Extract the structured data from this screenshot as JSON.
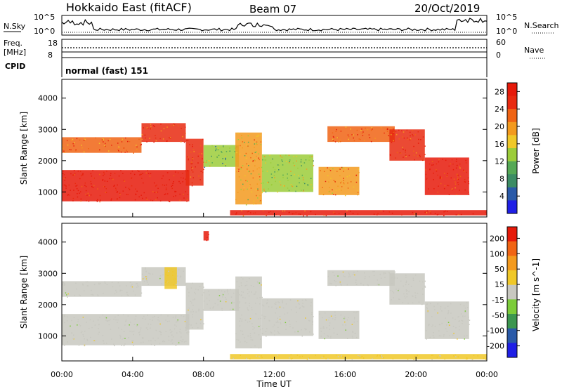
{
  "header": {
    "title": "Hokkaido East (fitACF)",
    "beam": "Beam 07",
    "date": "20/Oct/2019"
  },
  "noise_panel": {
    "left_label": "N.Sky",
    "right_label": "N.Search",
    "left_ticks": [
      "10^5",
      "10^0"
    ],
    "right_ticks": [
      "10^5",
      "10^0"
    ]
  },
  "freq_panel": {
    "left_label_1": "Freq.",
    "left_label_2": "[MHz]",
    "left_ticks": [
      "18",
      "8"
    ],
    "right_label": "Nave",
    "right_ticks": [
      "60",
      "0"
    ]
  },
  "cpid_panel": {
    "label": "CPID",
    "value": "normal (fast) 151"
  },
  "x_axis": {
    "label": "Time UT",
    "ticks": [
      "00:00",
      "04:00",
      "08:00",
      "12:00",
      "16:00",
      "20:00",
      "00:00"
    ]
  },
  "colors": {
    "power_scale": [
      "#1f1fe6",
      "#2a5aa8",
      "#3c8c64",
      "#55a855",
      "#9ccc3a",
      "#f0c828",
      "#f39a1e",
      "#f06414",
      "#e82a10",
      "#e61a0a"
    ],
    "velocity_scale": [
      "#e61a0a",
      "#f06414",
      "#f39a1e",
      "#f0c828",
      "#c8c8c0",
      "#7ccc3a",
      "#3c9650",
      "#2a5aa8",
      "#1f1fe6"
    ]
  },
  "chart_data": [
    {
      "type": "heatmap",
      "title": "Power",
      "xlabel": "Time UT",
      "ylabel": "Slant Range [km]",
      "x_ticks": [
        "00:00",
        "04:00",
        "08:00",
        "12:00",
        "16:00",
        "20:00",
        "00:00"
      ],
      "y_ticks": [
        "1000",
        "2000",
        "3000",
        "4000"
      ],
      "xlim_hours": [
        0,
        24
      ],
      "ylim_km": [
        200,
        4600
      ],
      "colorbar": {
        "label": "Power [dB]",
        "ticks": [
          "4",
          "8",
          "12",
          "16",
          "20",
          "24",
          "28"
        ],
        "range": [
          0,
          30
        ]
      },
      "regions": [
        {
          "t0": 0.0,
          "t1": 7.2,
          "r0": 700,
          "r1": 1700,
          "value": 29
        },
        {
          "t0": 0.0,
          "t1": 4.5,
          "r0": 2250,
          "r1": 2750,
          "value": 22
        },
        {
          "t0": 4.5,
          "t1": 7.0,
          "r0": 2600,
          "r1": 3200,
          "value": 25
        },
        {
          "t0": 7.0,
          "t1": 8.0,
          "r0": 1200,
          "r1": 2700,
          "value": 26
        },
        {
          "t0": 8.0,
          "t1": 10.0,
          "r0": 1800,
          "r1": 2500,
          "value": 12
        },
        {
          "t0": 9.8,
          "t1": 11.3,
          "r0": 600,
          "r1": 2900,
          "value": 18
        },
        {
          "t0": 11.3,
          "t1": 14.2,
          "r0": 1000,
          "r1": 2200,
          "value": 14
        },
        {
          "t0": 14.5,
          "t1": 16.8,
          "r0": 900,
          "r1": 1800,
          "value": 20
        },
        {
          "t0": 15.0,
          "t1": 18.8,
          "r0": 2600,
          "r1": 3100,
          "value": 22
        },
        {
          "t0": 18.5,
          "t1": 20.5,
          "r0": 2000,
          "r1": 3000,
          "value": 26
        },
        {
          "t0": 20.5,
          "t1": 23.0,
          "r0": 900,
          "r1": 2100,
          "value": 27
        },
        {
          "t0": 9.5,
          "t1": 24.0,
          "r0": 250,
          "r1": 420,
          "value": 27
        }
      ]
    },
    {
      "type": "heatmap",
      "title": "Velocity",
      "xlabel": "Time UT",
      "ylabel": "Slant Range [km]",
      "x_ticks": [
        "00:00",
        "04:00",
        "08:00",
        "12:00",
        "16:00",
        "20:00",
        "00:00"
      ],
      "y_ticks": [
        "1000",
        "2000",
        "3000",
        "4000"
      ],
      "xlim_hours": [
        0,
        24
      ],
      "ylim_km": [
        200,
        4600
      ],
      "colorbar": {
        "label": "Velocity [m s^-1]",
        "ticks": [
          "200",
          "100",
          "50",
          "15",
          "-15",
          "-50",
          "-100",
          "-200"
        ],
        "range": [
          -250,
          250
        ]
      },
      "regions": [
        {
          "t0": 0.0,
          "t1": 7.2,
          "r0": 700,
          "r1": 1700,
          "value": 0
        },
        {
          "t0": 0.0,
          "t1": 4.5,
          "r0": 2250,
          "r1": 2750,
          "value": 0
        },
        {
          "t0": 4.5,
          "t1": 7.0,
          "r0": 2600,
          "r1": 3200,
          "value": 0
        },
        {
          "t0": 5.8,
          "t1": 6.5,
          "r0": 2500,
          "r1": 3200,
          "value": 40
        },
        {
          "t0": 7.0,
          "t1": 8.0,
          "r0": 1200,
          "r1": 2700,
          "value": 0
        },
        {
          "t0": 8.0,
          "t1": 10.0,
          "r0": 1800,
          "r1": 2500,
          "value": 0
        },
        {
          "t0": 9.8,
          "t1": 11.3,
          "r0": 600,
          "r1": 2900,
          "value": 0
        },
        {
          "t0": 11.3,
          "t1": 14.2,
          "r0": 1000,
          "r1": 2200,
          "value": 0
        },
        {
          "t0": 14.5,
          "t1": 16.8,
          "r0": 900,
          "r1": 1800,
          "value": 0
        },
        {
          "t0": 15.0,
          "t1": 18.8,
          "r0": 2600,
          "r1": 3100,
          "value": 0
        },
        {
          "t0": 18.5,
          "t1": 20.5,
          "r0": 2000,
          "r1": 3000,
          "value": 0
        },
        {
          "t0": 20.5,
          "t1": 23.0,
          "r0": 900,
          "r1": 2100,
          "value": 0
        },
        {
          "t0": 9.5,
          "t1": 24.0,
          "r0": 250,
          "r1": 420,
          "value": 45
        },
        {
          "t0": 8.0,
          "t1": 8.3,
          "r0": 4050,
          "r1": 4350,
          "value": 220
        }
      ]
    }
  ]
}
